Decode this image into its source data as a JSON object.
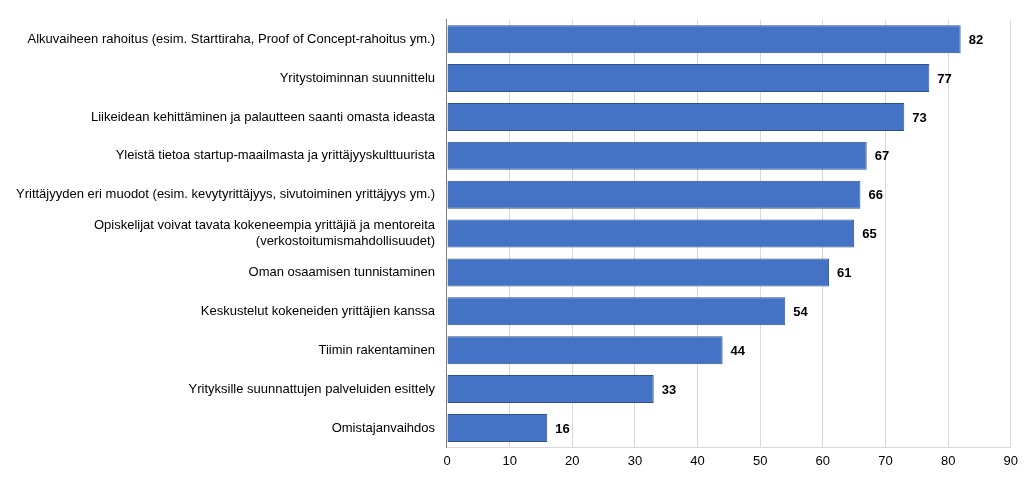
{
  "chart_data": {
    "type": "bar",
    "orientation": "horizontal",
    "categories": [
      "Alkuvaiheen rahoitus (esim. Starttiraha, Proof of Concept-rahoitus ym.)",
      "Yritystoiminnan suunnittelu",
      "Liikeidean kehittäminen ja palautteen saanti omasta ideasta",
      "Yleistä tietoa startup-maailmasta ja yrittäjyyskulttuurista",
      "Yrittäjyyden eri muodot (esim. kevytyrittäjyys, sivutoiminen yrittäjyys ym.)",
      "Opiskelijat voivat tavata kokeneempia yrittäjiä ja mentoreita (verkostoitumismahdollisuudet)",
      "Oman osaamisen tunnistaminen",
      "Keskustelut kokeneiden yrittäjien kanssa",
      "Tiimin rakentaminen",
      "Yrityksille suunnattujen palveluiden esittely",
      "Omistajanvaihdos"
    ],
    "values": [
      82,
      77,
      73,
      67,
      66,
      65,
      61,
      54,
      44,
      33,
      16
    ],
    "color": "#4472c4",
    "xlim": [
      0,
      90
    ],
    "xticks": [
      0,
      10,
      20,
      30,
      40,
      50,
      60,
      70,
      80,
      90
    ],
    "grid": true,
    "data_labels": true
  }
}
